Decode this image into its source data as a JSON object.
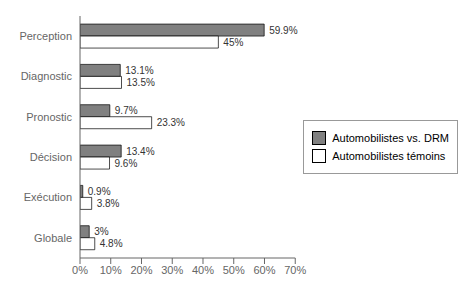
{
  "chart_data": {
    "type": "bar",
    "orientation": "horizontal",
    "categories": [
      "Perception",
      "Diagnostic",
      "Pronostic",
      "Décision",
      "Exécution",
      "Globale"
    ],
    "series": [
      {
        "name": "Automobilistes vs. DRM",
        "color": "#808080",
        "values": [
          59.9,
          13.1,
          9.7,
          13.4,
          0.9,
          3.0
        ],
        "value_labels": [
          "59.9%",
          "13.1%",
          "9.7%",
          "13.4%",
          "0.9%",
          "3%"
        ]
      },
      {
        "name": "Automobilistes témoins",
        "color": "#ffffff",
        "values": [
          45.0,
          13.5,
          23.3,
          9.6,
          3.8,
          4.8
        ],
        "value_labels": [
          "45%",
          "13.5%",
          "23.3%",
          "9.6%",
          "3.8%",
          "4.8%"
        ]
      }
    ],
    "xlim": [
      0,
      70
    ],
    "xticks": [
      {
        "value": 0,
        "label": "0%"
      },
      {
        "value": 10,
        "label": "10%"
      },
      {
        "value": 20,
        "label": "20%"
      },
      {
        "value": 30,
        "label": "30%"
      },
      {
        "value": 40,
        "label": "40%"
      },
      {
        "value": 50,
        "label": "50%"
      },
      {
        "value": 60,
        "label": "60%"
      },
      {
        "value": 70,
        "label": "70%"
      }
    ],
    "data_labels": true,
    "legend": "right"
  }
}
